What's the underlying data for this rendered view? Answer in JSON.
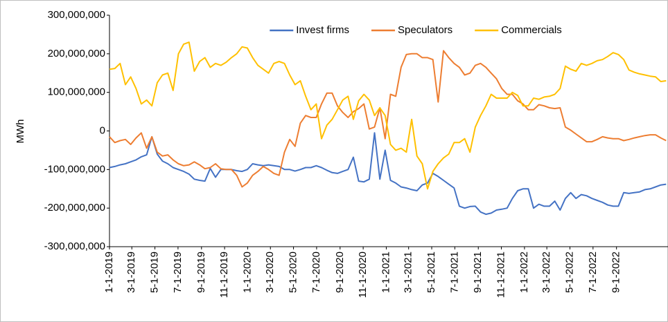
{
  "chart_data": {
    "type": "line",
    "ylabel": "MWh",
    "x": [
      "2019-01-01",
      "2019-01-15",
      "2019-01-29",
      "2019-02-12",
      "2019-02-26",
      "2019-03-12",
      "2019-03-26",
      "2019-04-09",
      "2019-04-23",
      "2019-05-07",
      "2019-05-21",
      "2019-06-04",
      "2019-06-18",
      "2019-07-02",
      "2019-07-16",
      "2019-07-30",
      "2019-08-13",
      "2019-08-27",
      "2019-09-10",
      "2019-09-24",
      "2019-10-08",
      "2019-10-22",
      "2019-11-05",
      "2019-11-19",
      "2019-12-03",
      "2019-12-17",
      "2019-12-31",
      "2020-01-14",
      "2020-01-28",
      "2020-02-11",
      "2020-02-25",
      "2020-03-10",
      "2020-03-24",
      "2020-04-07",
      "2020-04-21",
      "2020-05-05",
      "2020-05-19",
      "2020-06-02",
      "2020-06-16",
      "2020-06-30",
      "2020-07-14",
      "2020-07-28",
      "2020-08-11",
      "2020-08-25",
      "2020-09-08",
      "2020-09-22",
      "2020-10-06",
      "2020-10-20",
      "2020-11-03",
      "2020-11-17",
      "2020-12-01",
      "2020-12-15",
      "2020-12-29",
      "2021-01-12",
      "2021-01-26",
      "2021-02-09",
      "2021-02-23",
      "2021-03-09",
      "2021-03-23",
      "2021-04-06",
      "2021-04-20",
      "2021-05-04",
      "2021-05-18",
      "2021-06-01",
      "2021-06-15",
      "2021-06-29",
      "2021-07-13",
      "2021-07-27",
      "2021-08-10",
      "2021-08-24",
      "2021-09-07",
      "2021-09-21",
      "2021-10-05",
      "2021-10-19",
      "2021-11-02",
      "2021-11-16",
      "2021-11-30",
      "2021-12-14",
      "2021-12-28",
      "2022-01-11",
      "2022-01-25",
      "2022-02-08",
      "2022-02-22",
      "2022-03-08",
      "2022-03-22",
      "2022-04-05",
      "2022-04-19",
      "2022-05-03",
      "2022-05-17",
      "2022-05-31",
      "2022-06-14",
      "2022-06-28",
      "2022-07-12",
      "2022-07-26",
      "2022-08-09",
      "2022-08-23",
      "2022-09-06",
      "2022-09-20",
      "2022-10-04",
      "2022-10-18",
      "2022-11-01",
      "2022-11-15",
      "2022-11-29",
      "2022-12-13",
      "2022-12-27",
      "2023-01-10"
    ],
    "series": [
      {
        "name": "Invest firms",
        "color": "#4472c4",
        "values": [
          -95000000.0,
          -92000000.0,
          -88000000.0,
          -85000000.0,
          -80000000.0,
          -75000000.0,
          -67000000.0,
          -62000000.0,
          -15000000.0,
          -60000000.0,
          -78000000.0,
          -85000000.0,
          -95000000.0,
          -100000000.0,
          -105000000.0,
          -112000000.0,
          -125000000.0,
          -128000000.0,
          -130000000.0,
          -97000000.0,
          -120000000.0,
          -100000000.0,
          -100000000.0,
          -100000000.0,
          -103000000.0,
          -105000000.0,
          -100000000.0,
          -85000000.0,
          -88000000.0,
          -90000000.0,
          -88000000.0,
          -90000000.0,
          -92000000.0,
          -100000000.0,
          -100000000.0,
          -104000000.0,
          -100000000.0,
          -95000000.0,
          -95000000.0,
          -90000000.0,
          -95000000.0,
          -102000000.0,
          -108000000.0,
          -110000000.0,
          -105000000.0,
          -100000000.0,
          -68000000.0,
          -130000000.0,
          -132000000.0,
          -125000000.0,
          -5000000.0,
          -125000000.0,
          -50000000.0,
          -128000000.0,
          -135000000.0,
          -145000000.0,
          -148000000.0,
          -152000000.0,
          -155000000.0,
          -140000000.0,
          -135000000.0,
          -110000000.0,
          -118000000.0,
          -128000000.0,
          -138000000.0,
          -148000000.0,
          -195000000.0,
          -200000000.0,
          -196000000.0,
          -195000000.0,
          -210000000.0,
          -216000000.0,
          -213000000.0,
          -205000000.0,
          -203000000.0,
          -200000000.0,
          -175000000.0,
          -155000000.0,
          -150000000.0,
          -150000000.0,
          -200000000.0,
          -190000000.0,
          -195000000.0,
          -195000000.0,
          -182000000.0,
          -205000000.0,
          -175000000.0,
          -160000000.0,
          -175000000.0,
          -165000000.0,
          -168000000.0,
          -175000000.0,
          -180000000.0,
          -185000000.0,
          -192000000.0,
          -195000000.0,
          -195000000.0,
          -160000000.0,
          -162000000.0,
          -160000000.0,
          -158000000.0,
          -152000000.0,
          -150000000.0,
          -145000000.0,
          -140000000.0,
          -138000000.0
        ]
      },
      {
        "name": "Speculators",
        "color": "#ed7d31",
        "values": [
          -15000000.0,
          -30000000.0,
          -25000000.0,
          -22000000.0,
          -35000000.0,
          -18000000.0,
          -5000000.0,
          -45000000.0,
          -15000000.0,
          -55000000.0,
          -65000000.0,
          -62000000.0,
          -75000000.0,
          -85000000.0,
          -90000000.0,
          -88000000.0,
          -80000000.0,
          -88000000.0,
          -98000000.0,
          -95000000.0,
          -85000000.0,
          -98000000.0,
          -100000000.0,
          -100000000.0,
          -115000000.0,
          -145000000.0,
          -135000000.0,
          -115000000.0,
          -105000000.0,
          -92000000.0,
          -100000000.0,
          -110000000.0,
          -115000000.0,
          -55000000.0,
          -22000000.0,
          -40000000.0,
          20000000.0,
          40000000.0,
          35000000.0,
          35000000.0,
          70000000.0,
          98000000.0,
          98000000.0,
          65000000.0,
          48000000.0,
          35000000.0,
          50000000.0,
          58000000.0,
          70000000.0,
          5000000.0,
          10000000.0,
          60000000.0,
          -20000000.0,
          95000000.0,
          90000000.0,
          165000000.0,
          198000000.0,
          200000000.0,
          200000000.0,
          190000000.0,
          190000000.0,
          185000000.0,
          75000000.0,
          208000000.0,
          190000000.0,
          175000000.0,
          165000000.0,
          145000000.0,
          150000000.0,
          170000000.0,
          175000000.0,
          165000000.0,
          150000000.0,
          135000000.0,
          110000000.0,
          95000000.0,
          95000000.0,
          78000000.0,
          70000000.0,
          55000000.0,
          55000000.0,
          68000000.0,
          65000000.0,
          60000000.0,
          58000000.0,
          60000000.0,
          10000000.0,
          2000000.0,
          -8000000.0,
          -18000000.0,
          -28000000.0,
          -28000000.0,
          -22000000.0,
          -15000000.0,
          -18000000.0,
          -20000000.0,
          -20000000.0,
          -25000000.0,
          -22000000.0,
          -18000000.0,
          -15000000.0,
          -12000000.0,
          -10000000.0,
          -10000000.0,
          -18000000.0,
          -25000000.0
        ]
      },
      {
        "name": "Commercials",
        "color": "#ffc000",
        "values": [
          160000000.0,
          162000000.0,
          175000000.0,
          120000000.0,
          140000000.0,
          110000000.0,
          70000000.0,
          80000000.0,
          65000000.0,
          125000000.0,
          145000000.0,
          150000000.0,
          105000000.0,
          200000000.0,
          225000000.0,
          230000000.0,
          155000000.0,
          180000000.0,
          190000000.0,
          165000000.0,
          175000000.0,
          170000000.0,
          178000000.0,
          190000000.0,
          200000000.0,
          218000000.0,
          215000000.0,
          190000000.0,
          170000000.0,
          160000000.0,
          150000000.0,
          175000000.0,
          180000000.0,
          175000000.0,
          145000000.0,
          120000000.0,
          130000000.0,
          90000000.0,
          55000000.0,
          70000000.0,
          -20000000.0,
          15000000.0,
          30000000.0,
          55000000.0,
          80000000.0,
          90000000.0,
          30000000.0,
          78000000.0,
          95000000.0,
          80000000.0,
          40000000.0,
          60000000.0,
          40000000.0,
          -35000000.0,
          -50000000.0,
          -45000000.0,
          -55000000.0,
          30000000.0,
          -65000000.0,
          -85000000.0,
          -150000000.0,
          -105000000.0,
          -85000000.0,
          -70000000.0,
          -60000000.0,
          -30000000.0,
          -30000000.0,
          -20000000.0,
          -55000000.0,
          10000000.0,
          40000000.0,
          65000000.0,
          95000000.0,
          85000000.0,
          85000000.0,
          85000000.0,
          100000000.0,
          92000000.0,
          65000000.0,
          65000000.0,
          85000000.0,
          82000000.0,
          88000000.0,
          90000000.0,
          95000000.0,
          110000000.0,
          168000000.0,
          160000000.0,
          155000000.0,
          175000000.0,
          170000000.0,
          175000000.0,
          182000000.0,
          185000000.0,
          193000000.0,
          203000000.0,
          198000000.0,
          185000000.0,
          158000000.0,
          152000000.0,
          148000000.0,
          145000000.0,
          142000000.0,
          140000000.0,
          128000000.0,
          130000000.0
        ]
      }
    ],
    "xlim": [
      "2019-01-01",
      "2023-01-15"
    ],
    "xticks": [
      {
        "value": "2019-01-01",
        "label": "1-1-2019"
      },
      {
        "value": "2019-03-01",
        "label": "3-1-2019"
      },
      {
        "value": "2019-05-01",
        "label": "5-1-2019"
      },
      {
        "value": "2019-07-01",
        "label": "7-1-2019"
      },
      {
        "value": "2019-09-01",
        "label": "9-1-2019"
      },
      {
        "value": "2019-11-01",
        "label": "11-1-2019"
      },
      {
        "value": "2020-01-01",
        "label": "1-1-2020"
      },
      {
        "value": "2020-03-01",
        "label": "3-1-2020"
      },
      {
        "value": "2020-05-01",
        "label": "5-1-2020"
      },
      {
        "value": "2020-07-01",
        "label": "7-1-2020"
      },
      {
        "value": "2020-09-01",
        "label": "9-1-2020"
      },
      {
        "value": "2020-11-01",
        "label": "11-1-2020"
      },
      {
        "value": "2021-01-01",
        "label": "1-1-2021"
      },
      {
        "value": "2021-03-01",
        "label": "3-1-2021"
      },
      {
        "value": "2021-05-01",
        "label": "5-1-2021"
      },
      {
        "value": "2021-07-01",
        "label": "7-1-2021"
      },
      {
        "value": "2021-09-01",
        "label": "9-1-2021"
      },
      {
        "value": "2021-11-01",
        "label": "11-1-2021"
      },
      {
        "value": "2022-01-01",
        "label": "1-1-2022"
      },
      {
        "value": "2022-03-01",
        "label": "3-1-2022"
      },
      {
        "value": "2022-05-01",
        "label": "5-1-2022"
      },
      {
        "value": "2022-07-01",
        "label": "7-1-2022"
      },
      {
        "value": "2022-09-01",
        "label": "9-1-2022"
      }
    ],
    "ylim": [
      -300000000,
      300000000
    ],
    "yticks": [
      {
        "value": -300000000,
        "label": "-300,000,000"
      },
      {
        "value": -200000000,
        "label": "-200,000,000"
      },
      {
        "value": -100000000,
        "label": "-100,000,000"
      },
      0,
      {
        "value": 100000000,
        "label": "100,000,000"
      },
      {
        "value": 200000000,
        "label": "200,000,000"
      },
      {
        "value": 300000000,
        "label": "300,000,000"
      }
    ],
    "grid": false,
    "legend": "top"
  }
}
